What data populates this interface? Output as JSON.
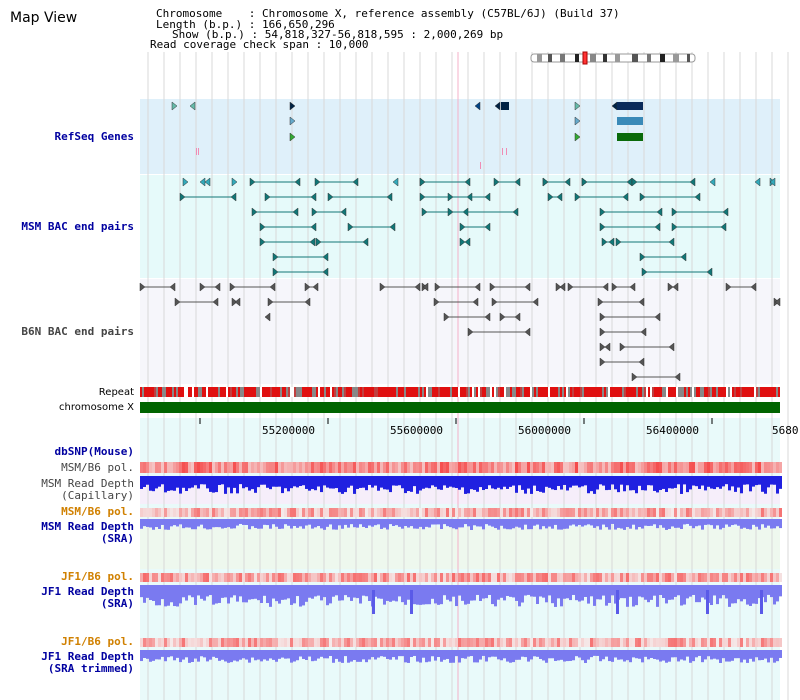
{
  "title": "Map View",
  "info": {
    "chromosome": "Chromosome    : Chromosome X, reference assembly (C57BL/6J) (Build 37)",
    "length": "Length (b.p.) : 166,650,296",
    "show": "Show (b.p.) : 54,818,327-56,818,595 : 2,000,269 bp",
    "coverage": "Read coverage check span : 10,000"
  },
  "labels": {
    "refseq": "RefSeq Genes",
    "msm_bac": "MSM BAC end pairs",
    "b6n_bac": "B6N BAC end pairs",
    "repeat": "Repeat",
    "chrom": "chromosome X",
    "dbsnp": "dbSNP(Mouse)",
    "msm_pol": "MSM/B6 pol.",
    "msm_depth_cap_1": "MSM Read Depth",
    "msm_depth_cap_2": "(Capillary)",
    "msm_pol2": "MSM/B6 pol.",
    "msm_depth_sra_1": "MSM Read Depth",
    "msm_depth_sra_2": "(SRA)",
    "jf1_pol": "JF1/B6 pol.",
    "jf1_depth_1": "JF1 Read Depth",
    "jf1_depth_2": "(SRA)",
    "jf1_pol2": "JF1/B6 pol.",
    "jf1_trim_1": "JF1 Read Depth",
    "jf1_trim_2": "(SRA trimmed)"
  },
  "scale": {
    "ticks": [
      "55200000",
      "55600000",
      "56000000",
      "56400000",
      "5680"
    ]
  },
  "colors": {
    "refseq_bg": "#dff0fa",
    "msm_bg": "#e6fafa",
    "b6n_bg": "#f6f6fb",
    "lower_bg": "#e9fafa",
    "chrom_green": "#006400",
    "repeat_red": "#e01010",
    "depth_blue": "#2020e0",
    "depth_light": "#7a7af0"
  }
}
